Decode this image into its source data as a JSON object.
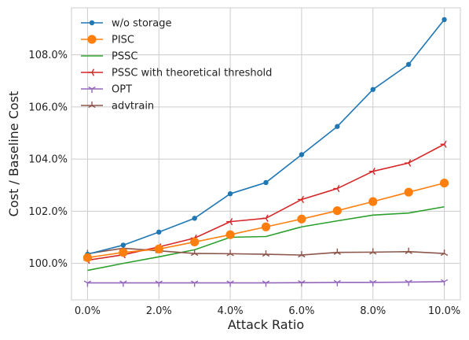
{
  "chart_data": {
    "type": "line",
    "title": "",
    "xlabel": "Attack Ratio",
    "ylabel": "Cost / Baseline Cost",
    "x": [
      0,
      1,
      2,
      3,
      4,
      5,
      6,
      7,
      8,
      9,
      10
    ],
    "xticks": [
      0,
      2,
      4,
      6,
      8,
      10
    ],
    "xtick_labels": [
      "0.0%",
      "2.0%",
      "4.0%",
      "6.0%",
      "8.0%",
      "10.0%"
    ],
    "xlim": [
      -0.45,
      10.45
    ],
    "yticks": [
      100,
      102,
      104,
      106,
      108
    ],
    "ytick_labels": [
      "100.0%",
      "102.0%",
      "104.0%",
      "106.0%",
      "108.0%"
    ],
    "ylim": [
      98.6,
      109.8
    ],
    "grid": true,
    "legend_position": "top-left",
    "series": [
      {
        "name": "w/o storage",
        "color": "#1f77b4",
        "marker": "dot",
        "values": [
          100.35,
          100.7,
          101.2,
          101.73,
          102.67,
          103.1,
          104.17,
          105.25,
          106.67,
          107.63,
          109.35
        ]
      },
      {
        "name": "PISC",
        "color": "#ff7f0e",
        "marker": "big-dot",
        "values": [
          100.22,
          100.42,
          100.55,
          100.82,
          101.1,
          101.4,
          101.7,
          102.02,
          102.37,
          102.73,
          103.08
        ]
      },
      {
        "name": "PSSC",
        "color": "#2ca02c",
        "marker": "none",
        "values": [
          99.73,
          100.0,
          100.25,
          100.52,
          101.0,
          101.03,
          101.4,
          101.63,
          101.85,
          101.93,
          102.17
        ]
      },
      {
        "name": "PSSC with theoretical threshold",
        "color": "#d62728",
        "marker": "tri-left",
        "values": [
          100.12,
          100.33,
          100.63,
          100.97,
          101.6,
          101.73,
          102.45,
          102.87,
          103.53,
          103.85,
          104.57
        ]
      },
      {
        "name": "OPT",
        "color": "#9467bd",
        "marker": "tri-down",
        "values": [
          99.25,
          99.25,
          99.25,
          99.25,
          99.25,
          99.25,
          99.26,
          99.27,
          99.27,
          99.28,
          99.3
        ]
      },
      {
        "name": "advtrain",
        "color": "#8c564b",
        "marker": "tri-up",
        "values": [
          100.37,
          100.58,
          100.48,
          100.38,
          100.37,
          100.35,
          100.32,
          100.42,
          100.43,
          100.45,
          100.38
        ]
      }
    ]
  }
}
